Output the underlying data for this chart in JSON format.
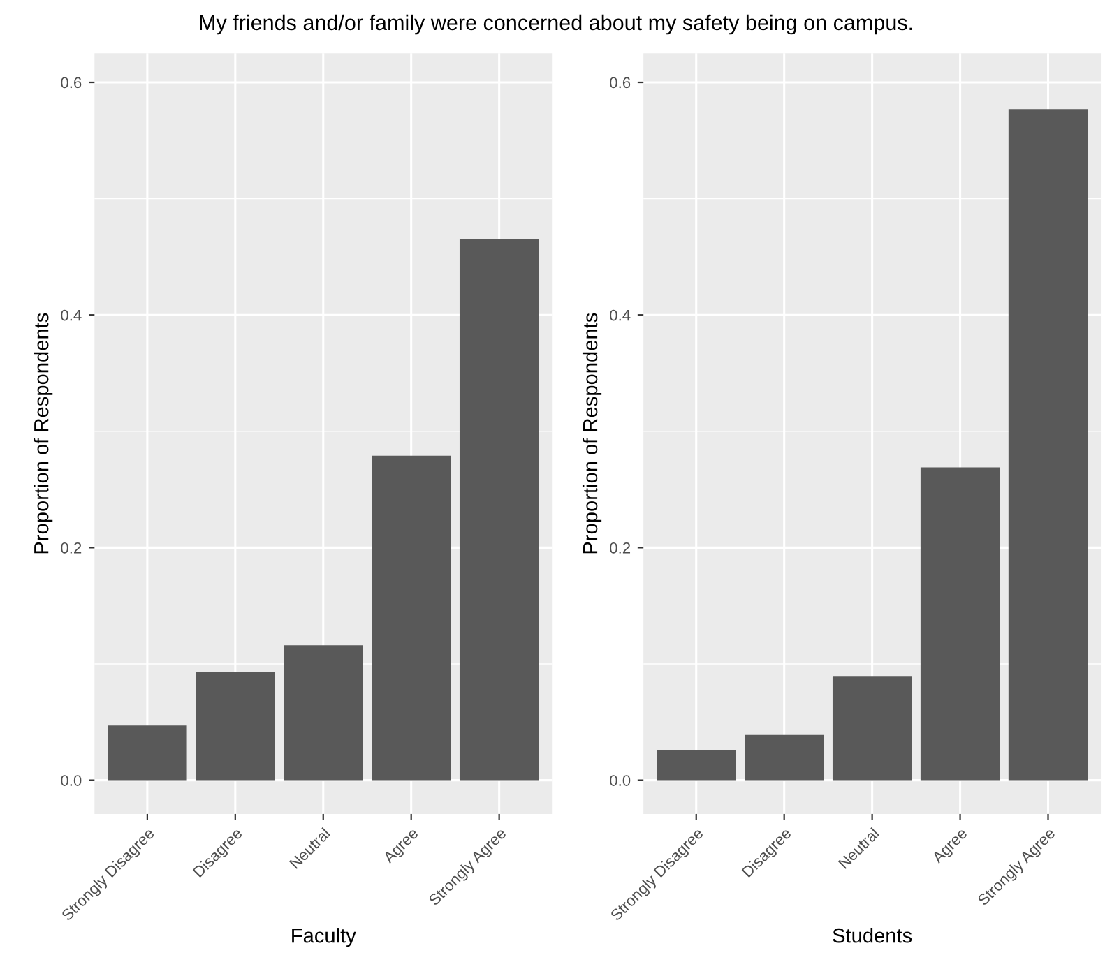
{
  "chart_data": [
    {
      "type": "bar",
      "title": "My friends and/or family were concerned about my safety being on campus.",
      "xlabel": "Faculty",
      "ylabel": "Proportion of Respondents",
      "categories": [
        "Strongly Disagree",
        "Disagree",
        "Neutral",
        "Agree",
        "Strongly Agree"
      ],
      "values": [
        0.047,
        0.093,
        0.116,
        0.279,
        0.465
      ],
      "color": "#595959",
      "ylim": [
        -0.029,
        0.625
      ],
      "yticks": [
        {
          "value": 0,
          "label": "0.0"
        },
        0.2,
        0.4,
        0.6
      ],
      "grid": true
    },
    {
      "type": "bar",
      "xlabel": "Students",
      "ylabel": "Proportion of Respondents",
      "categories": [
        "Strongly Disagree",
        "Disagree",
        "Neutral",
        "Agree",
        "Strongly Agree"
      ],
      "values": [
        0.026,
        0.039,
        0.089,
        0.269,
        0.577
      ],
      "color": "#595959",
      "ylim": [
        -0.029,
        0.625
      ],
      "yticks": [
        {
          "value": 0,
          "label": "0.0"
        },
        0.2,
        0.4,
        0.6
      ],
      "grid": true
    }
  ]
}
